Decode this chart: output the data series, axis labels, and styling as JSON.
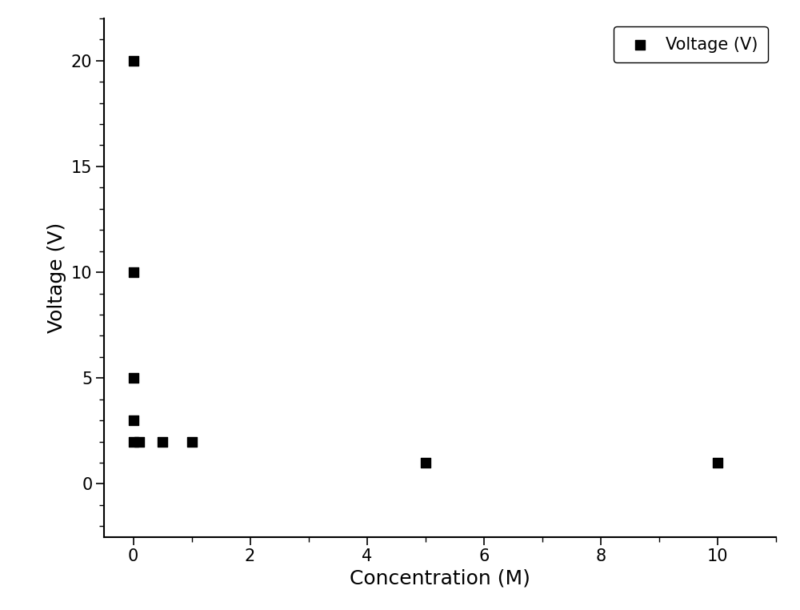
{
  "x": [
    0,
    0,
    0,
    0,
    0,
    0.1,
    0.5,
    1,
    5,
    10
  ],
  "y": [
    20,
    10,
    5,
    3,
    2,
    2,
    2,
    2,
    1,
    1
  ],
  "xlabel": "Concentration (M)",
  "ylabel": "Voltage (V)",
  "legend_label": "Voltage (V)",
  "xlim": [
    -0.5,
    11
  ],
  "ylim": [
    -2.5,
    22
  ],
  "xticks": [
    0,
    2,
    4,
    6,
    8,
    10
  ],
  "yticks": [
    0,
    5,
    10,
    15,
    20
  ],
  "marker": "s",
  "marker_color": "#000000",
  "marker_size": 72,
  "background_color": "#ffffff",
  "axis_label_fontsize": 18,
  "tick_fontsize": 15,
  "legend_fontsize": 15
}
